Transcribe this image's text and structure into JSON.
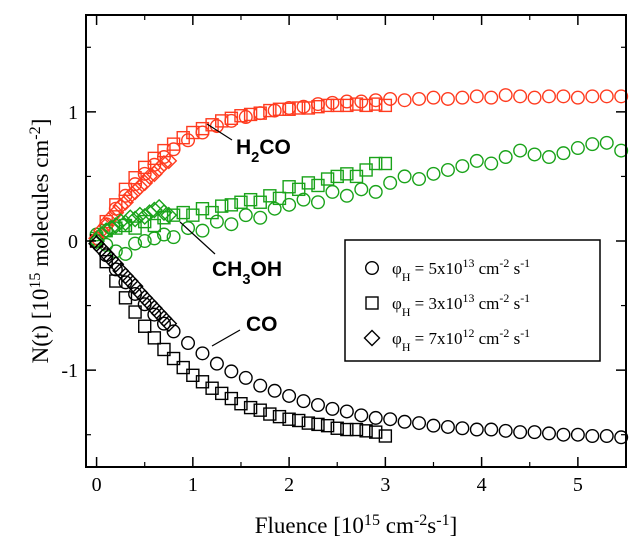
{
  "chart_data": {
    "type": "scatter",
    "x_label": [
      {
        "t": "Fluence [10"
      },
      {
        "t": "15",
        "s": "super"
      },
      {
        "t": " cm"
      },
      {
        "t": "-2",
        "s": "super"
      },
      {
        "t": "s"
      },
      {
        "t": "-1",
        "s": "super"
      },
      {
        "t": "]"
      }
    ],
    "y_label": [
      {
        "t": "N(t) [10"
      },
      {
        "t": "15",
        "s": "super"
      },
      {
        "t": " molecules cm"
      },
      {
        "t": "-2",
        "s": "super"
      },
      {
        "t": "]"
      }
    ],
    "xlim": [
      -0.11,
      5.5
    ],
    "ylim": [
      -1.75,
      1.75
    ],
    "xticks": [
      0,
      1,
      2,
      3,
      4,
      5
    ],
    "yticks": [
      -1,
      0,
      1
    ],
    "xminorticks": [
      0.5,
      1.5,
      2.5,
      3.5,
      4.5
    ],
    "yminorticks": [
      -1.5,
      -0.5,
      0.5,
      1.5
    ],
    "annotations": [
      {
        "text": [
          {
            "t": "H"
          },
          {
            "t": "2",
            "s": "sub"
          },
          {
            "t": "CO"
          }
        ],
        "color": "#ff3b1f"
      },
      {
        "text": [
          {
            "t": "CH"
          },
          {
            "t": "3",
            "s": "sub"
          },
          {
            "t": "OH"
          }
        ],
        "color": "#1aa31a"
      },
      {
        "text": [
          {
            "t": "CO"
          }
        ],
        "color": "#000000"
      }
    ],
    "series": [
      {
        "name": [
          {
            "t": "φ"
          },
          {
            "t": "H",
            "s": "sub"
          },
          {
            "t": " = 5x10"
          },
          {
            "t": "13",
            "s": "super"
          },
          {
            "t": " cm"
          },
          {
            "t": "-2",
            "s": "super"
          },
          {
            "t": " s"
          },
          {
            "t": "-1",
            "s": "super"
          }
        ],
        "marker": "circle",
        "x": [
          0,
          0.1,
          0.2,
          0.3,
          0.4,
          0.5,
          0.6,
          0.7,
          0.8,
          0.95,
          1.1,
          1.25,
          1.4,
          1.55,
          1.7,
          1.85,
          2.0,
          2.15,
          2.3,
          2.45,
          2.6,
          2.75,
          2.9,
          3.05,
          3.2,
          3.35,
          3.5,
          3.65,
          3.8,
          3.95,
          4.1,
          4.25,
          4.4,
          4.55,
          4.7,
          4.85,
          5.0,
          5.15,
          5.3,
          5.45
        ],
        "curves": [
          {
            "color": "#ff3b1f",
            "values": [
              0,
              0.13,
              0.25,
              0.35,
              0.44,
              0.52,
              0.59,
              0.65,
              0.71,
              0.78,
              0.84,
              0.89,
              0.93,
              0.96,
              0.99,
              1.01,
              1.03,
              1.04,
              1.06,
              1.07,
              1.08,
              1.08,
              1.09,
              1.1,
              1.09,
              1.1,
              1.11,
              1.1,
              1.11,
              1.12,
              1.11,
              1.13,
              1.12,
              1.11,
              1.12,
              1.12,
              1.11,
              1.12,
              1.12,
              1.12
            ]
          },
          {
            "color": "#1aa31a",
            "values": [
              0.05,
              -0.03,
              -0.08,
              -0.1,
              -0.02,
              0.0,
              0.02,
              0.05,
              0.03,
              0.1,
              0.08,
              0.15,
              0.13,
              0.2,
              0.18,
              0.25,
              0.28,
              0.32,
              0.3,
              0.38,
              0.35,
              0.4,
              0.38,
              0.45,
              0.5,
              0.48,
              0.52,
              0.55,
              0.58,
              0.62,
              0.6,
              0.65,
              0.7,
              0.67,
              0.65,
              0.68,
              0.72,
              0.75,
              0.76,
              0.7
            ]
          },
          {
            "color": "#000000",
            "values": [
              0,
              -0.11,
              -0.22,
              -0.32,
              -0.41,
              -0.49,
              -0.57,
              -0.64,
              -0.7,
              -0.79,
              -0.87,
              -0.95,
              -1.01,
              -1.06,
              -1.12,
              -1.16,
              -1.2,
              -1.24,
              -1.27,
              -1.3,
              -1.32,
              -1.35,
              -1.37,
              -1.38,
              -1.4,
              -1.41,
              -1.43,
              -1.44,
              -1.45,
              -1.46,
              -1.46,
              -1.47,
              -1.48,
              -1.48,
              -1.49,
              -1.5,
              -1.5,
              -1.51,
              -1.51,
              -1.52
            ]
          }
        ]
      },
      {
        "name": [
          {
            "t": "φ"
          },
          {
            "t": "H",
            "s": "sub"
          },
          {
            "t": " = 3x10"
          },
          {
            "t": "13",
            "s": "super"
          },
          {
            "t": " cm"
          },
          {
            "t": "-2",
            "s": "super"
          },
          {
            "t": " s"
          },
          {
            "t": "-1",
            "s": "super"
          }
        ],
        "marker": "square",
        "x": [
          0,
          0.1,
          0.2,
          0.3,
          0.4,
          0.5,
          0.6,
          0.7,
          0.8,
          0.9,
          1.0,
          1.1,
          1.2,
          1.3,
          1.4,
          1.5,
          1.6,
          1.7,
          1.8,
          1.9,
          2.0,
          2.1,
          2.2,
          2.3,
          2.4,
          2.5,
          2.6,
          2.7,
          2.8,
          2.9,
          3.0
        ],
        "curves": [
          {
            "color": "#ff3b1f",
            "values": [
              0,
              0.15,
              0.28,
              0.4,
              0.49,
              0.57,
              0.64,
              0.7,
              0.75,
              0.8,
              0.84,
              0.87,
              0.9,
              0.93,
              0.95,
              0.97,
              0.98,
              0.99,
              1.01,
              1.02,
              1.02,
              1.03,
              1.03,
              1.04,
              1.05,
              1.05,
              1.05,
              1.06,
              1.05,
              1.06,
              1.05
            ]
          },
          {
            "color": "#1aa31a",
            "values": [
              0.02,
              0.08,
              0.1,
              0.12,
              0.1,
              0.15,
              0.12,
              0.18,
              0.2,
              0.22,
              0.2,
              0.25,
              0.22,
              0.27,
              0.28,
              0.3,
              0.32,
              0.3,
              0.35,
              0.33,
              0.42,
              0.4,
              0.45,
              0.43,
              0.48,
              0.5,
              0.52,
              0.5,
              0.55,
              0.6,
              0.6
            ]
          },
          {
            "color": "#000000",
            "values": [
              0,
              -0.16,
              -0.31,
              -0.44,
              -0.55,
              -0.66,
              -0.75,
              -0.84,
              -0.91,
              -0.98,
              -1.04,
              -1.09,
              -1.14,
              -1.18,
              -1.22,
              -1.26,
              -1.29,
              -1.31,
              -1.34,
              -1.36,
              -1.38,
              -1.39,
              -1.41,
              -1.42,
              -1.43,
              -1.45,
              -1.46,
              -1.46,
              -1.47,
              -1.48,
              -1.51
            ]
          }
        ]
      },
      {
        "name": [
          {
            "t": "φ"
          },
          {
            "t": "H",
            "s": "sub"
          },
          {
            "t": " = 7x10"
          },
          {
            "t": "12",
            "s": "super"
          },
          {
            "t": " cm"
          },
          {
            "t": "-2",
            "s": "super"
          },
          {
            "t": " s"
          },
          {
            "t": "-1",
            "s": "super"
          }
        ],
        "marker": "diamond",
        "x": [
          0,
          0.05,
          0.1,
          0.15,
          0.2,
          0.25,
          0.3,
          0.35,
          0.4,
          0.45,
          0.5,
          0.55,
          0.6,
          0.65,
          0.7,
          0.75
        ],
        "curves": [
          {
            "color": "#ff3b1f",
            "values": [
              0.02,
              0.08,
              0.12,
              0.18,
              0.22,
              0.27,
              0.3,
              0.35,
              0.38,
              0.42,
              0.45,
              0.5,
              0.52,
              0.56,
              0.6,
              0.62
            ]
          },
          {
            "color": "#1aa31a",
            "values": [
              0.0,
              0.05,
              0.08,
              0.1,
              0.12,
              0.15,
              0.14,
              0.18,
              0.17,
              0.2,
              0.19,
              0.22,
              0.24,
              0.26,
              0.22,
              0.2
            ]
          },
          {
            "color": "#000000",
            "values": [
              -0.02,
              -0.06,
              -0.1,
              -0.14,
              -0.18,
              -0.23,
              -0.27,
              -0.31,
              -0.35,
              -0.4,
              -0.44,
              -0.48,
              -0.52,
              -0.56,
              -0.6,
              -0.64
            ]
          }
        ]
      }
    ]
  }
}
